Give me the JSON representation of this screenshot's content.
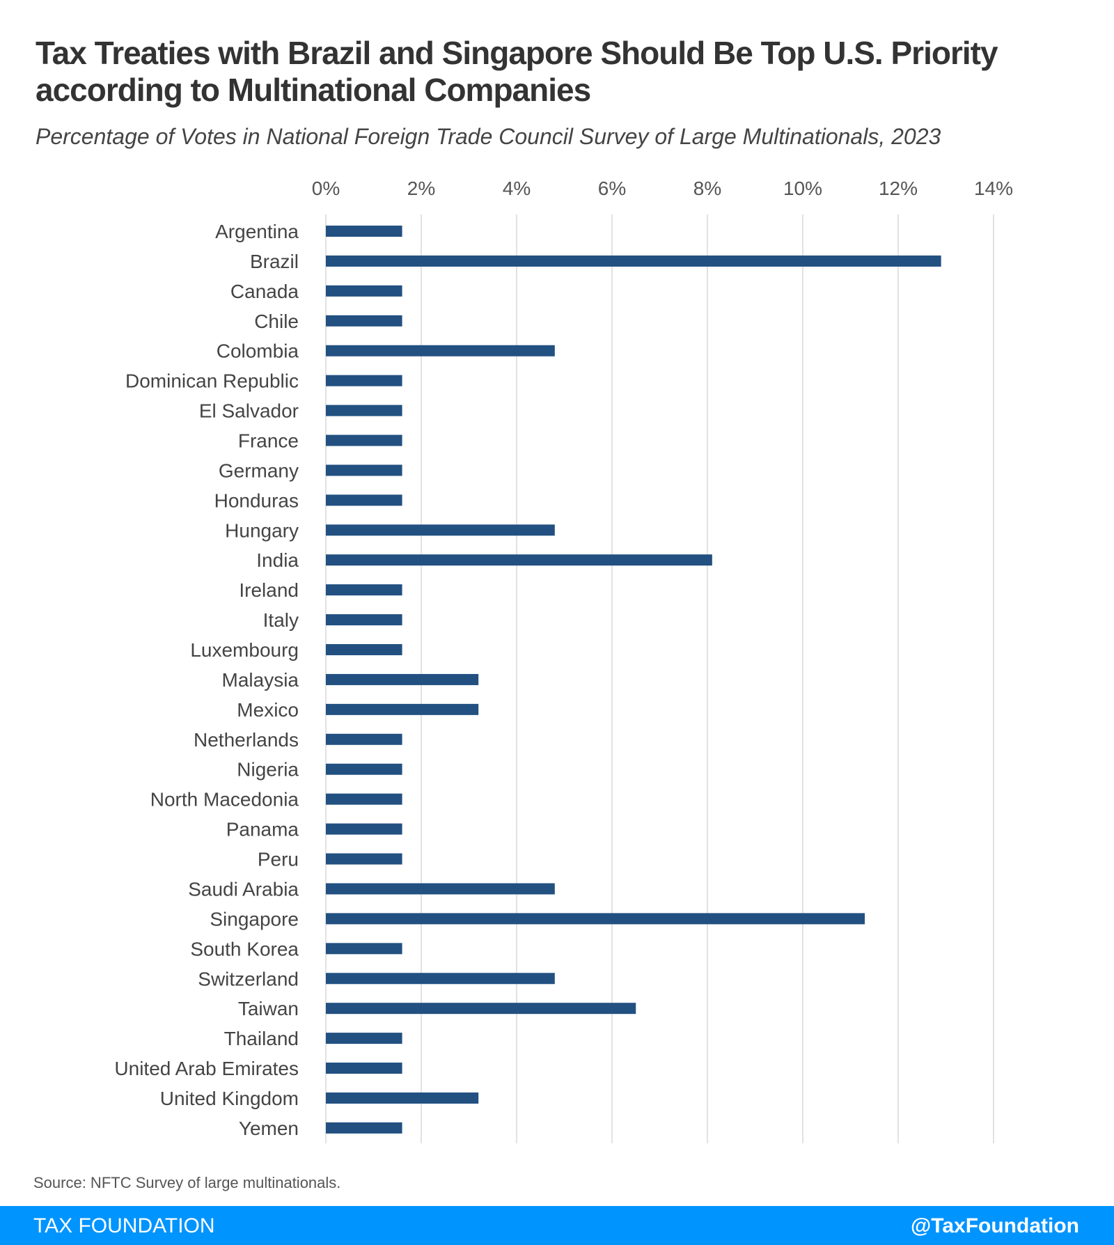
{
  "header": {
    "title": "Tax Treaties with Brazil and Singapore Should Be Top U.S. Priority according to Multinational Companies",
    "subtitle": "Percentage of Votes in National Foreign Trade Council Survey of Large Multinationals, 2023"
  },
  "chart_data": {
    "type": "bar",
    "orientation": "horizontal",
    "title": "Tax Treaties with Brazil and Singapore Should Be Top U.S. Priority according to Multinational Companies",
    "subtitle": "Percentage of Votes in National Foreign Trade Council Survey of Large Multinationals, 2023",
    "categories": [
      "Argentina",
      "Brazil",
      "Canada",
      "Chile",
      "Colombia",
      "Dominican Republic",
      "El Salvador",
      "France",
      "Germany",
      "Honduras",
      "Hungary",
      "India",
      "Ireland",
      "Italy",
      "Luxembourg",
      "Malaysia",
      "Mexico",
      "Netherlands",
      "Nigeria",
      "North Macedonia",
      "Panama",
      "Peru",
      "Saudi Arabia",
      "Singapore",
      "South Korea",
      "Switzerland",
      "Taiwan",
      "Thailand",
      "United Arab Emirates",
      "United Kingdom",
      "Yemen"
    ],
    "values": [
      1.6,
      12.9,
      1.6,
      1.6,
      4.8,
      1.6,
      1.6,
      1.6,
      1.6,
      1.6,
      4.8,
      8.1,
      1.6,
      1.6,
      1.6,
      3.2,
      3.2,
      1.6,
      1.6,
      1.6,
      1.6,
      1.6,
      4.8,
      11.3,
      1.6,
      4.8,
      6.5,
      1.6,
      1.6,
      3.2,
      1.6
    ],
    "xlim": [
      0,
      14
    ],
    "xticks": [
      "0%",
      "2%",
      "4%",
      "6%",
      "8%",
      "10%",
      "12%",
      "14%"
    ],
    "xtick_values": [
      0,
      2,
      4,
      6,
      8,
      10,
      12,
      14
    ],
    "axis_position": "top",
    "grid": true,
    "bar_color": "#225081",
    "grid_color": "#d9d9d9"
  },
  "source": "Source: NFTC Survey of large multinationals.",
  "footer": {
    "brand": "TAX FOUNDATION",
    "handle": "@TaxFoundation",
    "color": "#0094ff"
  }
}
